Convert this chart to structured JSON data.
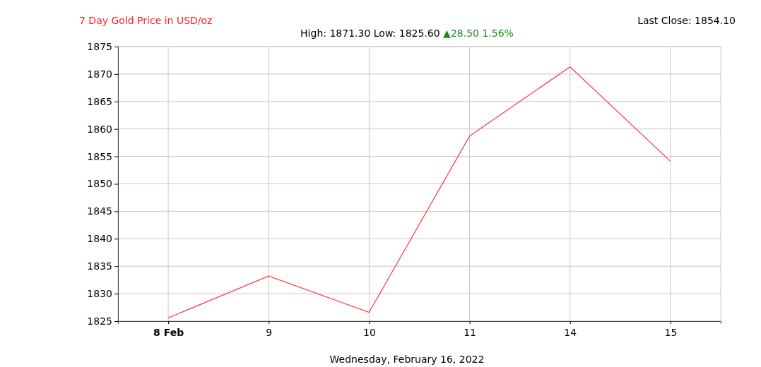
{
  "chart_data": {
    "type": "line",
    "title": "7 Day Gold Price in USD/oz",
    "subtitle": "High: 1871.30 Low: 1825.60",
    "annotations": [
      "Last Close: 1854.10",
      "▲28.50 1.56%"
    ],
    "xlabel": "Wednesday, February 16, 2022",
    "categories": [
      "8 Feb",
      "9",
      "10",
      "11",
      "14",
      "15"
    ],
    "series": [
      {
        "color": "#ff4040",
        "values": [
          1825.6,
          1833.2,
          1826.6,
          1858.7,
          1871.3,
          1854.1
        ]
      }
    ],
    "ylim": [
      1825,
      1875
    ],
    "yticks": [
      1825,
      1830,
      1835,
      1840,
      1845,
      1850,
      1855,
      1860,
      1865,
      1870,
      1875
    ],
    "grid": true,
    "marker": "none",
    "line_style": "solid"
  }
}
